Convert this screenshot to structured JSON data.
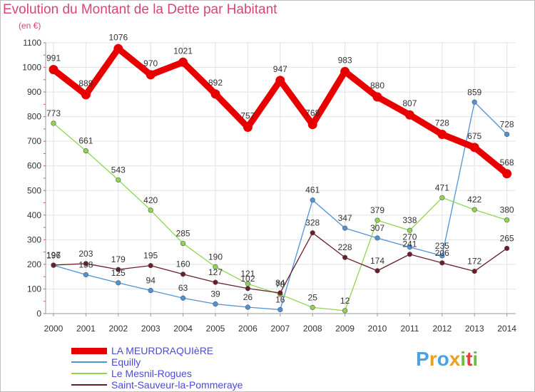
{
  "chart_data": {
    "type": "line",
    "title": "Evolution du Montant de la Dette par Habitant",
    "unit_label": "(en €)",
    "x": [
      "2000",
      "2001",
      "2002",
      "2003",
      "2004",
      "2005",
      "2006",
      "2007",
      "2008",
      "2009",
      "2010",
      "2011",
      "2012",
      "2013",
      "2014"
    ],
    "ylim": [
      0,
      1100
    ],
    "yticks": [
      0,
      100,
      200,
      300,
      400,
      500,
      600,
      700,
      800,
      900,
      1000,
      1100
    ],
    "grid": true,
    "legend_position": "bottom-left",
    "series": [
      {
        "name": "LA MEURDRAQUIèRE",
        "color": "#e80000",
        "values": [
          991,
          889,
          1076,
          970,
          1021,
          892,
          757,
          947,
          768,
          983,
          880,
          807,
          728,
          675,
          568
        ],
        "labels": [
          "991",
          "889",
          "1076",
          "970",
          "1021",
          "892",
          "757",
          "947",
          "768",
          "983",
          "880",
          "807",
          "728",
          "675",
          "568"
        ]
      },
      {
        "name": "Equilly",
        "color": "#4f92d6",
        "values": [
          196,
          158,
          125,
          94,
          63,
          39,
          26,
          16,
          461,
          347,
          307,
          270,
          235,
          859,
          728
        ],
        "labels": [
          "196",
          "158",
          "125",
          "94",
          "63",
          "39",
          "26",
          "16",
          "461",
          "347",
          "307",
          "270",
          "235",
          "859",
          "728"
        ]
      },
      {
        "name": "Le Mesnil-Rogues",
        "color": "#8fd64f",
        "values": [
          773,
          661,
          543,
          420,
          285,
          190,
          121,
          78,
          25,
          12,
          379,
          338,
          471,
          422,
          380
        ],
        "labels": [
          "773",
          "661",
          "543",
          "420",
          "285",
          "190",
          "121",
          "78",
          "25",
          "12",
          "379",
          "338",
          "471",
          "422",
          "380"
        ]
      },
      {
        "name": "Saint-Sauveur-la-Pommeraye",
        "color": "#6b1e2a",
        "values": [
          197,
          203,
          179,
          195,
          160,
          127,
          102,
          84,
          328,
          228,
          174,
          241,
          206,
          172,
          265
        ],
        "labels": [
          "197",
          "203",
          "179",
          "195",
          "160",
          "127",
          "102",
          "84",
          "328",
          "228",
          "174",
          "241",
          "206",
          "172",
          "265"
        ]
      }
    ]
  },
  "logo": {
    "text": "Proxiti"
  }
}
